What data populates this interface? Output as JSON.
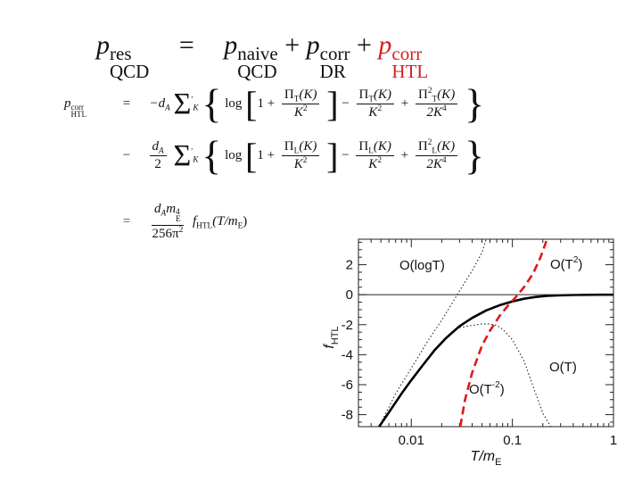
{
  "main_equation": {
    "lhs_p": "p",
    "lhs_sup": "res",
    "lhs_sub": "QCD",
    "eq_sign": "=",
    "t1_p": "p",
    "t1_sup": "naive",
    "t1_sub": "QCD",
    "plus1": "+",
    "t2_p": "p",
    "t2_sup": "corr",
    "t2_sub": "DR",
    "plus2": "+",
    "t3_p": "p",
    "t3_sup": "corr",
    "t3_sub": "HTL"
  },
  "htl_equation": {
    "lhs_p": "p",
    "lhs_sup": "corr",
    "lhs_sub": "HTL",
    "eq": "=",
    "line1": {
      "prefix": "−d",
      "prefix_sub": "A",
      "sum": "Σ",
      "sum_prime": "′",
      "sum_sub": "K",
      "brace_open": "{",
      "log": "log",
      "bracket_open": "[",
      "one_plus": "1 +",
      "f1_num": "Π",
      "f1_num_sub": "T",
      "f1_num_arg": "(K)",
      "f1_den": "K",
      "f1_den_sup": "2",
      "bracket_close": "]",
      "minus": "−",
      "f2_num": "Π",
      "f2_num_sub": "T",
      "f2_num_arg": "(K)",
      "f2_den": "K",
      "f2_den_sup": "2",
      "plus": "+",
      "f3_num": "Π",
      "f3_num_sup": "2",
      "f3_num_sub": "T",
      "f3_num_arg": "(K)",
      "f3_den": "2K",
      "f3_den_sup": "4",
      "brace_close": "}"
    },
    "line2": {
      "sign": "−",
      "pre_num": "d",
      "pre_num_sub": "A",
      "pre_den": "2",
      "sum": "Σ",
      "sum_prime": "′",
      "sum_sub": "K",
      "brace_open": "{",
      "log": "log",
      "bracket_open": "[",
      "one_plus": "1 +",
      "f1_num": "Π",
      "f1_num_sub": "L",
      "f1_num_arg": "(K)",
      "f1_den": "K",
      "f1_den_sup": "2",
      "bracket_close": "]",
      "minus": "−",
      "f2_num": "Π",
      "f2_num_sub": "L",
      "f2_num_arg": "(K)",
      "f2_den": "K",
      "f2_den_sup": "2",
      "plus": "+",
      "f3_num": "Π",
      "f3_num_sup": "2",
      "f3_num_sub": "L",
      "f3_num_arg": "(K)",
      "f3_den": "2K",
      "f3_den_sup": "4",
      "brace_close": "}"
    },
    "line3": {
      "sign": "=",
      "num": "d",
      "num_sub": "A",
      "num_m": "m",
      "num_m_sup": "4",
      "num_m_sub": "E",
      "den": "256π",
      "den_sup": "2",
      "f": "f",
      "f_sub": "HTL",
      "f_arg": "(T/m",
      "f_arg_sub": "E",
      "f_arg_close": ")"
    }
  },
  "chart_data": {
    "type": "line",
    "xscale": "log",
    "xlim": [
      0.003,
      1
    ],
    "ylim": [
      -8.8,
      3.7
    ],
    "xticks": [
      0.01,
      0.1,
      1
    ],
    "xtick_labels": [
      "0.01",
      "0.1",
      "1"
    ],
    "yticks": [
      2,
      0,
      -2,
      -4,
      -6,
      -8
    ],
    "ytick_labels": [
      "2",
      "0",
      "-2",
      "-4",
      "-6",
      "-8"
    ],
    "xlabel": "T/m",
    "xlabel_sub": "E",
    "ylabel": "f",
    "ylabel_sub": "HTL",
    "annotations": {
      "log": "O(logT)",
      "t2": "O(T",
      "t2_sup": "2",
      "t2_close": ")",
      "tm2": "O(T",
      "tm2_sup": "-2",
      "tm2_close": ")",
      "t": "O(T)"
    },
    "series": [
      {
        "style": "solid-black",
        "x": [
          0.0048,
          0.006,
          0.008,
          0.01,
          0.013,
          0.017,
          0.022,
          0.03,
          0.04,
          0.055,
          0.075,
          0.1,
          0.13,
          0.17,
          0.22,
          0.3,
          0.4,
          0.55,
          0.75,
          1.0
        ],
        "y": [
          -8.8,
          -7.85,
          -6.6,
          -5.7,
          -4.7,
          -3.7,
          -2.9,
          -2.1,
          -1.55,
          -1.05,
          -0.7,
          -0.45,
          -0.27,
          -0.15,
          -0.08,
          -0.04,
          -0.02,
          -0.01,
          0.0,
          0.0
        ]
      },
      {
        "style": "dashed-red",
        "x": [
          0.0305,
          0.034,
          0.04,
          0.05,
          0.06,
          0.075,
          0.09,
          0.11,
          0.13,
          0.16,
          0.19,
          0.22
        ],
        "y": [
          -8.8,
          -7.0,
          -5.2,
          -3.4,
          -2.4,
          -1.4,
          -0.75,
          -0.1,
          0.5,
          1.4,
          2.5,
          3.7
        ]
      },
      {
        "style": "dotted-black",
        "x": [
          0.0048,
          0.007,
          0.01,
          0.015,
          0.02,
          0.03,
          0.04,
          0.05,
          0.055
        ],
        "y": [
          -8.8,
          -6.6,
          -4.9,
          -2.95,
          -1.7,
          0.25,
          1.6,
          2.8,
          3.7
        ]
      },
      {
        "style": "dotted-black",
        "x": [
          0.03,
          0.04,
          0.05,
          0.06,
          0.07,
          0.08,
          0.1,
          0.13,
          0.16,
          0.2,
          0.24
        ],
        "y": [
          -2.2,
          -2.05,
          -1.95,
          -1.95,
          -2.05,
          -2.3,
          -3.0,
          -4.4,
          -6.1,
          -7.9,
          -8.8
        ]
      },
      {
        "style": "thin-black",
        "x": [
          0.003,
          1
        ],
        "y": [
          0,
          0
        ]
      }
    ]
  }
}
